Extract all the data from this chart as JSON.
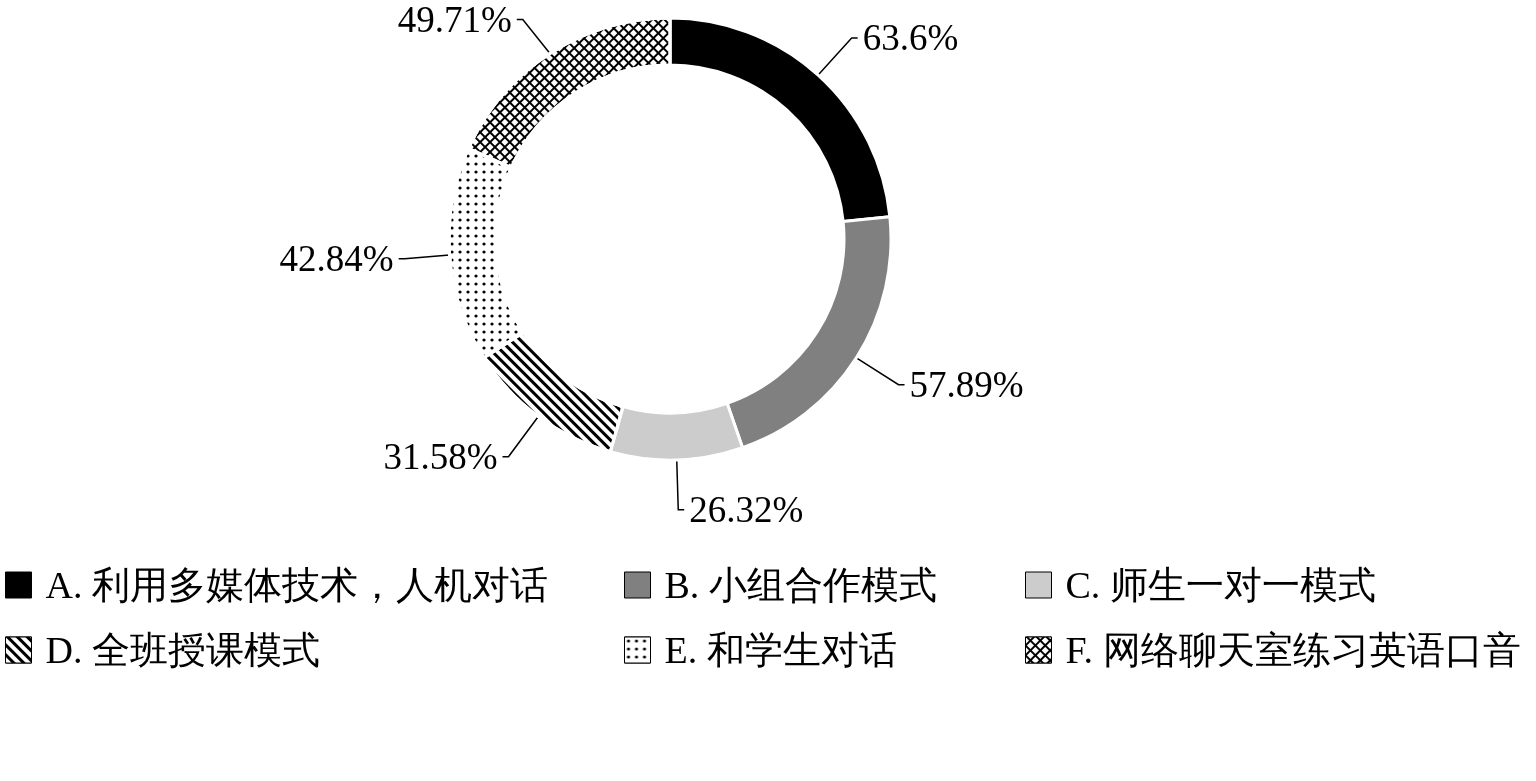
{
  "chart_data": {
    "type": "donut",
    "categories": [
      "A. 利用多媒体技术，人机对话",
      "B. 小组合作模式",
      "C. 师生一对一模式",
      "D. 全班授课模式",
      "E. 和学生对话",
      "F. 网络聊天室练习英语口音"
    ],
    "values": [
      63.6,
      57.89,
      26.32,
      31.58,
      42.84,
      49.71
    ],
    "value_labels": [
      "63.6%",
      "57.89%",
      "26.32%",
      "31.58%",
      "42.84%",
      "49.71%"
    ],
    "colors": [
      "#000000",
      "#808080",
      "#cccccc",
      "#000000",
      "#000000",
      "#000000"
    ],
    "legend": "bottom"
  }
}
